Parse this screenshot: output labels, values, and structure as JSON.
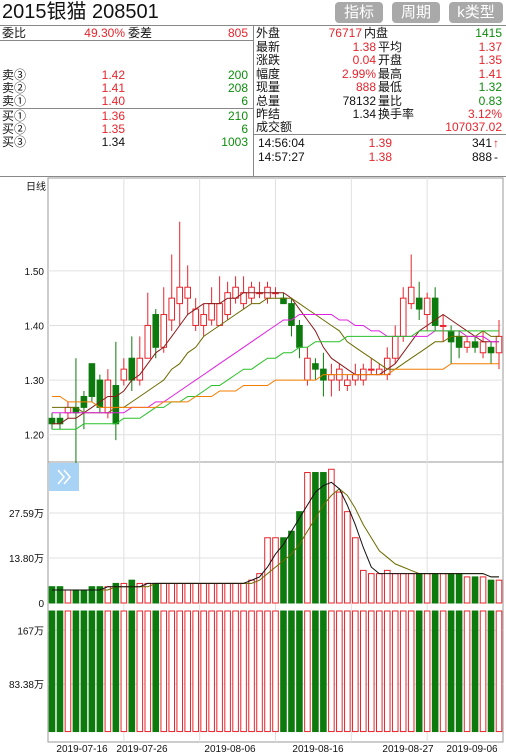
{
  "header": {
    "title": "2015银猫 208501",
    "buttons": [
      "指标",
      "周期",
      "k类型"
    ]
  },
  "order_book": {
    "weibi_label": "委比",
    "weibi_value": "49.30%",
    "weicha_label": "委差",
    "weicha_value": "805",
    "asks": [
      {
        "label": "卖③",
        "price": "1.42",
        "volume": "200"
      },
      {
        "label": "卖②",
        "price": "1.41",
        "volume": "208"
      },
      {
        "label": "卖①",
        "price": "1.40",
        "volume": "6"
      }
    ],
    "bids": [
      {
        "label": "买①",
        "price": "1.36",
        "volume": "210"
      },
      {
        "label": "买②",
        "price": "1.35",
        "volume": "6"
      },
      {
        "label": "买③",
        "price": "1.34",
        "volume": "1003"
      }
    ]
  },
  "quote": {
    "row0": {
      "l1": "外盘",
      "v1": "76717",
      "l2": "内盘",
      "v2": "1415"
    },
    "rows": [
      {
        "l1": "最新",
        "v1": "1.38",
        "l2": "平均",
        "v2": "1.37"
      },
      {
        "l1": "涨跌",
        "v1": "0.04",
        "l2": "开盘",
        "v2": "1.35"
      },
      {
        "l1": "幅度",
        "v1": "2.99%",
        "l2": "最高",
        "v2": "1.41"
      },
      {
        "l1": "现量",
        "v1": "888",
        "l2": "最低",
        "v2": "1.32"
      },
      {
        "l1": "总量",
        "v1": "78132",
        "l2": "量比",
        "v2": "0.83"
      },
      {
        "l1": "昨结",
        "v1": "1.34",
        "l2": "换手率",
        "v2": "3.12%"
      }
    ],
    "turnover_label": "成交额",
    "turnover_value": "107037.02"
  },
  "ticks": [
    {
      "time": "14:56:04",
      "price": "1.39",
      "volume": "341",
      "dir": "↑"
    },
    {
      "time": "14:57:27",
      "price": "1.38",
      "volume": "888",
      "dir": "-"
    }
  ],
  "chart_data": [
    {
      "type": "candlestick",
      "title": "日线",
      "ylim": [
        1.15,
        1.67
      ],
      "yticks": [
        "1.50",
        "1.40",
        "1.30",
        "1.20"
      ],
      "ytick_values": [
        1.5,
        1.4,
        1.3,
        1.2
      ],
      "up_color": "#e8242c",
      "down_color": "#0d7a0d",
      "candles": [
        [
          1.23,
          1.22,
          1.24,
          1.21
        ],
        [
          1.23,
          1.22,
          1.24,
          1.21
        ],
        [
          1.24,
          1.25,
          1.26,
          1.23
        ],
        [
          1.25,
          1.24,
          1.34,
          1.13
        ],
        [
          1.27,
          1.25,
          1.28,
          1.21
        ],
        [
          1.33,
          1.27,
          1.33,
          1.26
        ],
        [
          1.3,
          1.25,
          1.31,
          1.24
        ],
        [
          1.24,
          1.3,
          1.32,
          1.23
        ],
        [
          1.29,
          1.22,
          1.37,
          1.19
        ],
        [
          1.3,
          1.32,
          1.34,
          1.29
        ],
        [
          1.34,
          1.3,
          1.38,
          1.28
        ],
        [
          1.3,
          1.34,
          1.38,
          1.29
        ],
        [
          1.34,
          1.4,
          1.46,
          1.34
        ],
        [
          1.42,
          1.36,
          1.43,
          1.34
        ],
        [
          1.36,
          1.42,
          1.47,
          1.35
        ],
        [
          1.41,
          1.45,
          1.53,
          1.39
        ],
        [
          1.44,
          1.47,
          1.59,
          1.4
        ],
        [
          1.45,
          1.47,
          1.51,
          1.42
        ],
        [
          1.4,
          1.43,
          1.45,
          1.39
        ],
        [
          1.4,
          1.42,
          1.44,
          1.38
        ],
        [
          1.41,
          1.44,
          1.47,
          1.4
        ],
        [
          1.4,
          1.44,
          1.49,
          1.4
        ],
        [
          1.42,
          1.46,
          1.48,
          1.41
        ],
        [
          1.45,
          1.47,
          1.49,
          1.44
        ],
        [
          1.44,
          1.46,
          1.49,
          1.43
        ],
        [
          1.45,
          1.47,
          1.48,
          1.44
        ],
        [
          1.46,
          1.46,
          1.48,
          1.45
        ],
        [
          1.45,
          1.47,
          1.48,
          1.44
        ],
        [
          1.46,
          1.46,
          1.47,
          1.45
        ],
        [
          1.45,
          1.44,
          1.46,
          1.44
        ],
        [
          1.44,
          1.4,
          1.45,
          1.38
        ],
        [
          1.4,
          1.36,
          1.41,
          1.34
        ],
        [
          1.3,
          1.34,
          1.36,
          1.29
        ],
        [
          1.33,
          1.32,
          1.34,
          1.3
        ],
        [
          1.32,
          1.3,
          1.35,
          1.27
        ],
        [
          1.3,
          1.31,
          1.33,
          1.27
        ],
        [
          1.3,
          1.32,
          1.33,
          1.28
        ],
        [
          1.29,
          1.3,
          1.31,
          1.28
        ],
        [
          1.3,
          1.31,
          1.33,
          1.29
        ],
        [
          1.3,
          1.32,
          1.33,
          1.29
        ],
        [
          1.32,
          1.32,
          1.34,
          1.31
        ],
        [
          1.31,
          1.32,
          1.33,
          1.31
        ],
        [
          1.31,
          1.34,
          1.36,
          1.3
        ],
        [
          1.34,
          1.38,
          1.4,
          1.33
        ],
        [
          1.38,
          1.45,
          1.47,
          1.37
        ],
        [
          1.44,
          1.47,
          1.53,
          1.43
        ],
        [
          1.45,
          1.43,
          1.48,
          1.41
        ],
        [
          1.42,
          1.45,
          1.46,
          1.39
        ],
        [
          1.45,
          1.4,
          1.47,
          1.39
        ],
        [
          1.4,
          1.4,
          1.42,
          1.37
        ],
        [
          1.39,
          1.37,
          1.4,
          1.33
        ],
        [
          1.38,
          1.36,
          1.39,
          1.34
        ],
        [
          1.36,
          1.37,
          1.38,
          1.35
        ],
        [
          1.37,
          1.36,
          1.38,
          1.35
        ],
        [
          1.35,
          1.37,
          1.39,
          1.34
        ],
        [
          1.36,
          1.35,
          1.37,
          1.33
        ],
        [
          1.35,
          1.38,
          1.41,
          1.32
        ]
      ],
      "ma": [
        {
          "color": "#8b1a1a",
          "values": [
            1.22,
            1.22,
            1.23,
            1.23,
            1.24,
            1.25,
            1.26,
            1.27,
            1.27,
            1.28,
            1.3,
            1.31,
            1.33,
            1.35,
            1.36,
            1.38,
            1.4,
            1.42,
            1.43,
            1.44,
            1.44,
            1.44,
            1.45,
            1.45,
            1.46,
            1.46,
            1.46,
            1.46,
            1.46,
            1.46,
            1.45,
            1.43,
            1.41,
            1.39,
            1.36,
            1.34,
            1.33,
            1.32,
            1.31,
            1.31,
            1.31,
            1.31,
            1.32,
            1.33,
            1.35,
            1.37,
            1.39,
            1.4,
            1.41,
            1.42,
            1.41,
            1.4,
            1.39,
            1.38,
            1.37,
            1.37,
            1.37
          ]
        },
        {
          "color": "#6b6b00",
          "values": [
            1.25,
            1.25,
            1.25,
            1.25,
            1.24,
            1.24,
            1.24,
            1.24,
            1.25,
            1.25,
            1.26,
            1.27,
            1.28,
            1.29,
            1.3,
            1.32,
            1.33,
            1.35,
            1.36,
            1.38,
            1.39,
            1.4,
            1.41,
            1.42,
            1.43,
            1.44,
            1.44,
            1.45,
            1.45,
            1.45,
            1.45,
            1.44,
            1.43,
            1.42,
            1.41,
            1.4,
            1.39,
            1.37,
            1.36,
            1.35,
            1.34,
            1.33,
            1.32,
            1.32,
            1.33,
            1.34,
            1.35,
            1.36,
            1.37,
            1.37,
            1.38,
            1.38,
            1.38,
            1.38,
            1.39,
            1.38,
            1.38
          ]
        },
        {
          "color": "#e020e0",
          "values": [
            1.24,
            1.24,
            1.24,
            1.24,
            1.24,
            1.24,
            1.24,
            1.24,
            1.24,
            1.24,
            1.25,
            1.25,
            1.25,
            1.26,
            1.26,
            1.27,
            1.28,
            1.29,
            1.3,
            1.31,
            1.32,
            1.33,
            1.34,
            1.35,
            1.36,
            1.37,
            1.38,
            1.39,
            1.4,
            1.41,
            1.41,
            1.42,
            1.42,
            1.42,
            1.42,
            1.42,
            1.41,
            1.41,
            1.4,
            1.4,
            1.39,
            1.39,
            1.38,
            1.38,
            1.38,
            1.38,
            1.38,
            1.38,
            1.39,
            1.39,
            1.39,
            1.39,
            1.38,
            1.38,
            1.38,
            1.37,
            1.37
          ]
        },
        {
          "color": "#29c029",
          "values": [
            1.21,
            1.21,
            1.21,
            1.21,
            1.22,
            1.22,
            1.22,
            1.22,
            1.22,
            1.23,
            1.23,
            1.23,
            1.24,
            1.25,
            1.25,
            1.26,
            1.26,
            1.27,
            1.27,
            1.28,
            1.29,
            1.29,
            1.3,
            1.31,
            1.32,
            1.32,
            1.33,
            1.34,
            1.34,
            1.35,
            1.35,
            1.36,
            1.36,
            1.37,
            1.37,
            1.37,
            1.37,
            1.38,
            1.38,
            1.38,
            1.38,
            1.38,
            1.38,
            1.38,
            1.38,
            1.38,
            1.39,
            1.39,
            1.39,
            1.39,
            1.39,
            1.39,
            1.39,
            1.39,
            1.39,
            1.39,
            1.39
          ]
        },
        {
          "color": "#f57c00",
          "values": [
            1.27,
            1.27,
            1.26,
            1.26,
            1.26,
            1.26,
            1.25,
            1.25,
            1.25,
            1.25,
            1.25,
            1.25,
            1.25,
            1.25,
            1.26,
            1.26,
            1.26,
            1.26,
            1.27,
            1.27,
            1.27,
            1.28,
            1.28,
            1.28,
            1.29,
            1.29,
            1.29,
            1.29,
            1.3,
            1.3,
            1.3,
            1.3,
            1.3,
            1.3,
            1.31,
            1.31,
            1.31,
            1.31,
            1.31,
            1.31,
            1.31,
            1.31,
            1.31,
            1.32,
            1.32,
            1.32,
            1.32,
            1.32,
            1.32,
            1.32,
            1.33,
            1.33,
            1.33,
            1.33,
            1.33,
            1.33,
            1.33
          ]
        }
      ]
    },
    {
      "type": "bar",
      "title": "volume",
      "ymax": 42.0,
      "yticks": [
        "27.59万",
        "13.80万",
        "0"
      ],
      "ytick_values": [
        27.59,
        13.8,
        0
      ],
      "values": [
        5,
        5,
        4,
        4,
        4,
        5,
        5,
        5,
        6,
        6,
        7,
        6,
        6,
        6,
        6,
        6,
        6,
        6,
        6,
        6,
        6,
        6,
        6,
        6,
        6,
        7,
        9,
        20,
        20,
        20,
        22,
        28,
        40,
        40,
        40,
        41,
        34,
        28,
        20,
        10,
        9,
        9,
        10,
        9,
        9,
        9,
        9,
        9,
        9,
        9,
        9,
        9,
        8,
        8,
        8,
        7,
        7
      ],
      "ma": [
        {
          "color": "#6b6b00",
          "values": [
            4,
            4,
            4,
            4,
            4,
            4,
            4,
            4,
            5,
            5,
            5,
            5,
            5,
            6,
            6,
            6,
            6,
            6,
            6,
            6,
            6,
            6,
            6,
            6,
            6,
            6,
            7,
            9,
            11,
            13,
            15,
            18,
            22,
            26,
            30,
            33,
            35,
            33,
            29,
            24,
            20,
            16,
            14,
            12,
            11,
            10,
            9,
            9,
            9,
            9,
            9,
            9,
            9,
            9,
            9,
            8,
            8
          ]
        },
        {
          "color": "#111111",
          "values": [
            4,
            4,
            4,
            4,
            4,
            4,
            4,
            5,
            5,
            5,
            5,
            5,
            6,
            6,
            6,
            6,
            6,
            6,
            6,
            6,
            6,
            6,
            6,
            6,
            6,
            7,
            8,
            11,
            15,
            18,
            22,
            26,
            30,
            34,
            36,
            37,
            35,
            30,
            24,
            17,
            11,
            9,
            9,
            9,
            9,
            9,
            9,
            9,
            9,
            9,
            9,
            9,
            9,
            9,
            9,
            8,
            8
          ]
        }
      ]
    },
    {
      "type": "bar",
      "title": "amount",
      "ymax": 200,
      "yticks": [
        "167万",
        "83.38万"
      ],
      "ytick_values": [
        167,
        83.38
      ],
      "values": [
        190,
        190,
        190,
        190,
        190,
        190,
        190,
        190,
        190,
        190,
        190,
        190,
        190,
        190,
        190,
        190,
        190,
        190,
        190,
        190,
        190,
        190,
        190,
        190,
        190,
        190,
        190,
        190,
        190,
        190,
        190,
        190,
        190,
        190,
        190,
        190,
        190,
        190,
        190,
        190,
        190,
        190,
        190,
        190,
        190,
        190,
        190,
        190,
        190,
        190,
        190,
        190,
        190,
        190,
        190,
        190,
        190
      ]
    }
  ],
  "dates": [
    "2019-07-16",
    "2019-07-26",
    "2019-08-06",
    "2019-08-16",
    "2019-08-27",
    "2019-09-06"
  ]
}
